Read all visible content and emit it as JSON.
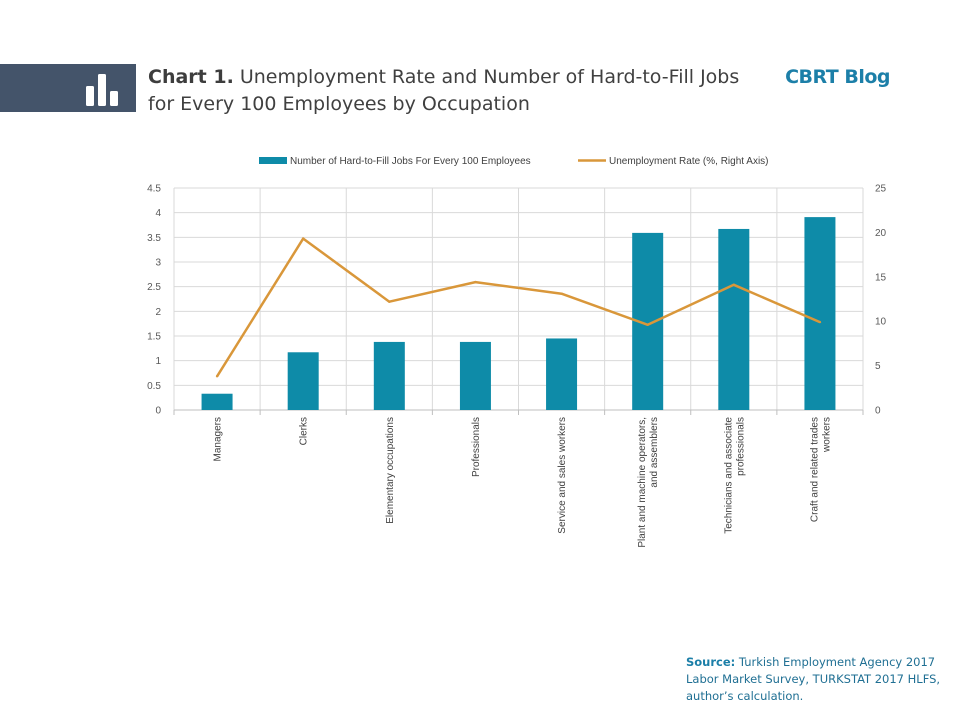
{
  "header": {
    "title_lead": "Chart 1.",
    "title_rest": "Unemployment Rate and Number of Hard-to-Fill Jobs for Every 100 Employees by Occupation",
    "brand": "CBRT Blog",
    "icon": "bar-chart-icon"
  },
  "colors": {
    "header_band": "#44546a",
    "bar": "#0e8ba8",
    "line": "#d9973a",
    "brand": "#1c7fa8"
  },
  "source": {
    "lead": "Source:",
    "text": "Turkish Employment Agency 2017 Labor Market Survey, TURKSTAT 2017 HLFS, author’s calculation."
  },
  "chart_data": {
    "type": "bar",
    "categories": [
      "Managers",
      "Clerks",
      "Elementary occupations",
      "Professionals",
      "Service and sales workers",
      "Plant and machine operators, and assemblers",
      "Technicians and associate professionals",
      "Craft and related trades workers"
    ],
    "series": [
      {
        "name": "Number of Hard-to-Fill Jobs For Every 100 Employees",
        "type": "bar",
        "axis": "left",
        "values": [
          0.33,
          1.17,
          1.38,
          1.38,
          1.45,
          3.59,
          3.67,
          3.91
        ]
      },
      {
        "name": "Unemployment Rate (%, Right Axis)",
        "type": "line",
        "axis": "right",
        "values": [
          3.8,
          19.3,
          12.2,
          14.4,
          13.1,
          9.6,
          14.1,
          9.9
        ]
      }
    ],
    "ylim": [
      0,
      4.5
    ],
    "yticks": [
      "0",
      "0.5",
      "1",
      "1.5",
      "2",
      "2.5",
      "3",
      "3.5",
      "4",
      "4.5"
    ],
    "y2lim": [
      0,
      25
    ],
    "y2ticks": [
      "0",
      "5",
      "10",
      "15",
      "20",
      "25"
    ],
    "grid": true,
    "legend_position": "top"
  }
}
